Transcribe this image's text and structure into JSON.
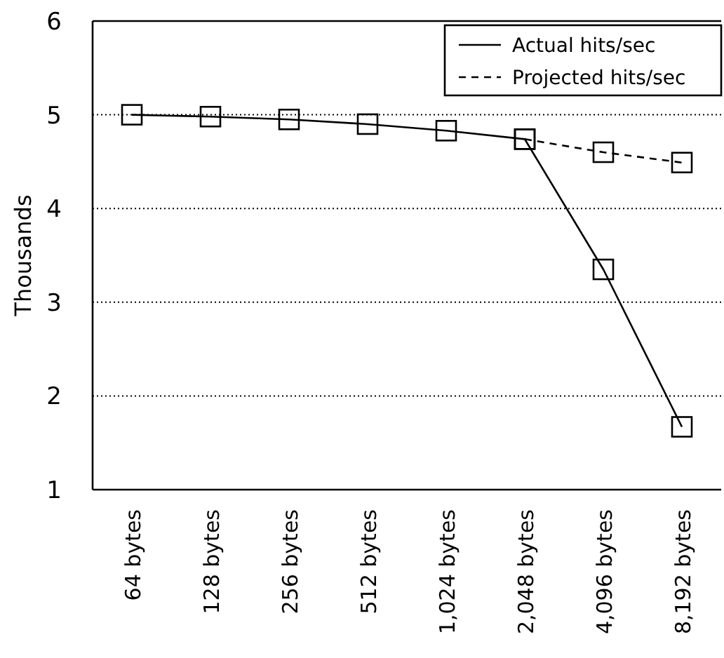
{
  "chart_data": {
    "type": "line",
    "ylabel": "Thousands",
    "categories": [
      "64 bytes",
      "128 bytes",
      "256 bytes",
      "512 bytes",
      "1,024 bytes",
      "2,048 bytes",
      "4,096 bytes",
      "8,192 bytes"
    ],
    "series": [
      {
        "name": "Actual hits/sec",
        "color": "#000000",
        "line_style": "solid",
        "values": [
          5.0,
          4.98,
          4.95,
          4.9,
          4.83,
          4.74,
          3.35,
          1.67
        ]
      },
      {
        "name": "Projected hits/sec",
        "color": "#000000",
        "line_style": "dashed",
        "values": [
          null,
          null,
          null,
          null,
          null,
          4.74,
          4.6,
          4.49
        ]
      }
    ],
    "ylim": [
      1,
      6
    ],
    "yticks": [
      1,
      2,
      3,
      4,
      5,
      6
    ],
    "grid": "y",
    "legend": "top right",
    "marker": "square"
  }
}
